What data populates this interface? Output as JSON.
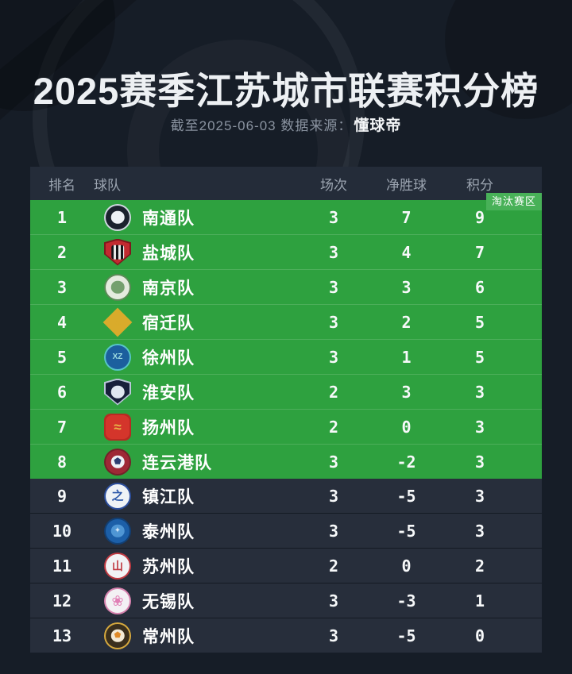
{
  "page": {
    "colors": {
      "background": "#161d27",
      "header_row": "#242c39",
      "green_zone": "#2ea13f",
      "zone_tag": "#48b158",
      "dark_row": "#272e3b",
      "title_text": "#edf0f3",
      "subtitle_text": "#8a93a0"
    }
  },
  "header": {
    "title": "2025赛季江苏城市联赛积分榜",
    "subtitle_prefix": "截至2025-06-03 数据来源：",
    "source": "懂球帝"
  },
  "table": {
    "columns": [
      "排名",
      "球队",
      "场次",
      "净胜球",
      "积分"
    ],
    "zone_tag": "淘汰赛区",
    "rows": [
      {
        "rank": "1",
        "team": "南通队",
        "played": "3",
        "gd": "7",
        "pts": "9",
        "zone": "green",
        "badge": {
          "name": "nantong-badge-icon",
          "shape": "circle",
          "ring": "#cfd6df",
          "fill": "#1b222e",
          "inner": "#edf1f5"
        }
      },
      {
        "rank": "2",
        "team": "盐城队",
        "played": "3",
        "gd": "4",
        "pts": "7",
        "zone": "green",
        "badge": {
          "name": "yancheng-badge-icon",
          "shape": "shield",
          "ring": "#7e181d",
          "fill": "#c22a30",
          "inner": "stripes"
        }
      },
      {
        "rank": "3",
        "team": "南京队",
        "played": "3",
        "gd": "3",
        "pts": "6",
        "zone": "green",
        "badge": {
          "name": "nanjing-badge-icon",
          "shape": "circle",
          "ring": "#5b8a57",
          "fill": "#e4ebdf",
          "inner": "#74a06e"
        }
      },
      {
        "rank": "4",
        "team": "宿迁队",
        "played": "3",
        "gd": "2",
        "pts": "5",
        "zone": "green",
        "badge": {
          "name": "suqian-badge-icon",
          "shape": "diamond",
          "ring": "#d9ab2b",
          "fill": "transparent",
          "glyph": "S",
          "glyphColor": "#d9ab2b",
          "glyphSize": "13px"
        }
      },
      {
        "rank": "5",
        "team": "徐州队",
        "played": "3",
        "gd": "1",
        "pts": "5",
        "zone": "green",
        "badge": {
          "name": "xuzhou-badge-icon",
          "shape": "circle",
          "ring": "#57c4c8",
          "fill": "#1c5f9e",
          "glyph": "XZ",
          "glyphColor": "#9fdde0",
          "glyphSize": "10px"
        }
      },
      {
        "rank": "6",
        "team": "淮安队",
        "played": "2",
        "gd": "3",
        "pts": "3",
        "zone": "green",
        "badge": {
          "name": "huaian-badge-icon",
          "shape": "shield",
          "ring": "#b9c6d8",
          "fill": "#17203a",
          "inner": "#dfe7f0"
        }
      },
      {
        "rank": "7",
        "team": "扬州队",
        "played": "2",
        "gd": "0",
        "pts": "3",
        "zone": "green",
        "badge": {
          "name": "yangzhou-badge-icon",
          "shape": "rounded",
          "ring": "#b72a22",
          "fill": "#d4352b",
          "glyph": "≈",
          "glyphColor": "#e8b848",
          "glyphSize": "17px"
        }
      },
      {
        "rank": "8",
        "team": "连云港队",
        "played": "3",
        "gd": "-2",
        "pts": "3",
        "zone": "green",
        "badge": {
          "name": "lianyungang-badge-icon",
          "shape": "circle",
          "ring": "#742029",
          "fill": "#9e2836",
          "inner": "#eef1f6",
          "glyph": "⬟",
          "glyphColor": "#2c3e72",
          "glyphSize": "11px"
        }
      },
      {
        "rank": "9",
        "team": "镇江队",
        "played": "3",
        "gd": "-5",
        "pts": "3",
        "zone": "dark",
        "badge": {
          "name": "zhenjiang-badge-icon",
          "shape": "circle",
          "ring": "#2c4f9e",
          "fill": "#eef2f6",
          "glyph": "之",
          "glyphColor": "#2c58aa",
          "glyphSize": "15px"
        }
      },
      {
        "rank": "10",
        "team": "泰州队",
        "played": "3",
        "gd": "-5",
        "pts": "3",
        "zone": "dark",
        "badge": {
          "name": "taizhou-badge-icon",
          "shape": "circle",
          "ring": "#123f74",
          "fill": "#1c5fa8",
          "inner": "#4f96d4",
          "glyph": "✦",
          "glyphColor": "#cfe4f6",
          "glyphSize": "10px"
        }
      },
      {
        "rank": "11",
        "team": "苏州队",
        "played": "2",
        "gd": "0",
        "pts": "2",
        "zone": "dark",
        "badge": {
          "name": "suzhou-badge-icon",
          "shape": "circle",
          "ring": "#c03a42",
          "fill": "#f1f3f5",
          "glyph": "山",
          "glyphColor": "#c03a42",
          "glyphSize": "14px"
        }
      },
      {
        "rank": "12",
        "team": "无锡队",
        "played": "3",
        "gd": "-3",
        "pts": "1",
        "zone": "dark",
        "badge": {
          "name": "wuxi-badge-icon",
          "shape": "circle",
          "ring": "#d782ae",
          "fill": "#f3f1f4",
          "glyph": "❀",
          "glyphColor": "#e07fb5",
          "glyphSize": "18px"
        }
      },
      {
        "rank": "13",
        "team": "常州队",
        "played": "3",
        "gd": "-5",
        "pts": "0",
        "zone": "dark",
        "badge": {
          "name": "changzhou-badge-icon",
          "shape": "circle",
          "ring": "#d6a93e",
          "fill": "#3a2f1d",
          "inner": "#f3ead6",
          "glyph": "⬟",
          "glyphColor": "#e08a28",
          "glyphSize": "10px"
        }
      }
    ]
  },
  "chart_data": {
    "type": "table",
    "title": "2025赛季江苏城市联赛积分榜",
    "subtitle": "截至2025-06-03 数据来源：懂球帝",
    "columns": [
      "排名",
      "球队",
      "场次",
      "净胜球",
      "积分"
    ],
    "rows": [
      [
        1,
        "南通队",
        3,
        7,
        9
      ],
      [
        2,
        "盐城队",
        3,
        4,
        7
      ],
      [
        3,
        "南京队",
        3,
        3,
        6
      ],
      [
        4,
        "宿迁队",
        3,
        2,
        5
      ],
      [
        5,
        "徐州队",
        3,
        1,
        5
      ],
      [
        6,
        "淮安队",
        2,
        3,
        3
      ],
      [
        7,
        "扬州队",
        2,
        0,
        3
      ],
      [
        8,
        "连云港队",
        3,
        -2,
        3
      ],
      [
        9,
        "镇江队",
        3,
        -5,
        3
      ],
      [
        10,
        "泰州队",
        3,
        -5,
        3
      ],
      [
        11,
        "苏州队",
        2,
        0,
        2
      ],
      [
        12,
        "无锡队",
        3,
        -3,
        1
      ],
      [
        13,
        "常州队",
        3,
        -5,
        0
      ]
    ],
    "annotations": [
      "淘汰赛区: 第1-8名为绿色高亮区"
    ],
    "layout": {
      "highlight_rows": [
        1,
        2,
        3,
        4,
        5,
        6,
        7,
        8
      ],
      "highlight_color": "#2ea13f"
    }
  }
}
